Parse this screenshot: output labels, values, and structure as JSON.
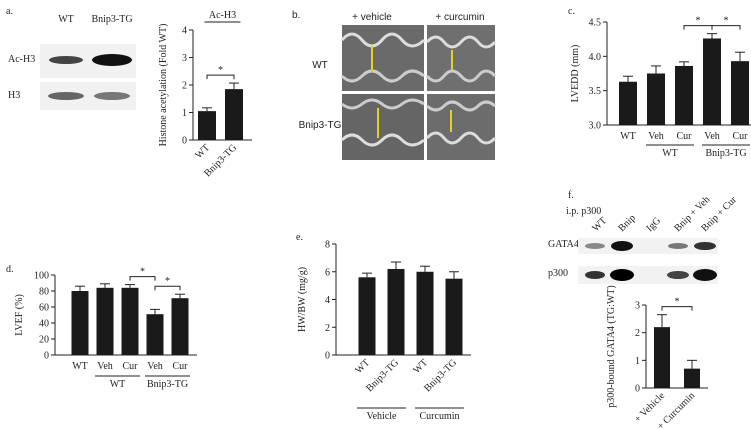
{
  "chart_data": [
    {
      "type": "bar",
      "panel": "a.",
      "title": "Ac-H3",
      "ylabel": "Histone acetylation (Fold WT)",
      "categories": [
        "WT",
        "Bnip3-TG"
      ],
      "values": [
        1.05,
        1.85
      ],
      "errors": [
        0.12,
        0.22
      ],
      "color": "#1a1a1a",
      "ylim": [
        0,
        4
      ],
      "yticks": [
        0,
        1,
        2,
        3,
        4
      ],
      "annotations": [
        {
          "text": "*",
          "between": [
            0,
            1
          ]
        }
      ]
    },
    {
      "type": "bar",
      "panel": "c.",
      "ylabel": "LVEDD (mm)",
      "categories": [
        "WT",
        "Veh",
        "Cur",
        "Veh",
        "Cur"
      ],
      "values": [
        3.63,
        3.75,
        3.86,
        4.26,
        3.93
      ],
      "errors": [
        0.08,
        0.11,
        0.06,
        0.07,
        0.13
      ],
      "color": "#1a1a1a",
      "ylim": [
        3,
        4.5
      ],
      "yticks": [
        {
          "value": 3,
          "label": "3.0"
        },
        3.5,
        {
          "value": 4,
          "label": "4.0"
        },
        4.5
      ],
      "groups": [
        {
          "label": "WT",
          "span": [
            1,
            2
          ]
        },
        {
          "label": "Bnip3-TG",
          "span": [
            3,
            4
          ]
        }
      ],
      "annotations": [
        {
          "text": "*",
          "between": [
            2,
            3
          ]
        },
        {
          "text": "*",
          "between": [
            3,
            4
          ]
        }
      ]
    },
    {
      "type": "bar",
      "panel": "d.",
      "ylabel": "LVEF (%)",
      "categories": [
        "WT",
        "Veh",
        "Cur",
        "Veh",
        "Cur"
      ],
      "values": [
        80,
        84,
        84,
        51,
        71
      ],
      "errors": [
        6,
        5,
        4,
        6,
        5
      ],
      "color": "#1a1a1a",
      "ylim": [
        0,
        100
      ],
      "yticks": [
        0,
        20,
        40,
        60,
        80,
        100
      ],
      "groups": [
        {
          "label": "WT",
          "span": [
            1,
            2
          ]
        },
        {
          "label": "Bnip3-TG",
          "span": [
            3,
            4
          ]
        }
      ],
      "annotations": [
        {
          "text": "*",
          "between": [
            2,
            3
          ]
        },
        {
          "text": "*",
          "between": [
            3,
            4
          ]
        }
      ]
    },
    {
      "type": "bar",
      "panel": "e.",
      "ylabel": "HW/BW (mg/g)",
      "categories": [
        "WT",
        "Bnip3-TG",
        "WT",
        "Bnip3-TG"
      ],
      "values": [
        5.6,
        6.2,
        6.0,
        5.5
      ],
      "errors": [
        0.3,
        0.5,
        0.4,
        0.5
      ],
      "color": "#1a1a1a",
      "ylim": [
        0,
        8
      ],
      "yticks": [
        0,
        2,
        4,
        6,
        8
      ],
      "groups": [
        {
          "label": "Vehicle",
          "span": [
            0,
            1
          ]
        },
        {
          "label": "Curcumin",
          "span": [
            2,
            3
          ]
        }
      ]
    },
    {
      "type": "bar",
      "panel": "f.",
      "ylabel": "p300-bound GATA4 (TG:WT)",
      "categories": [
        "+ Vehicle",
        "+ Curcumin"
      ],
      "values": [
        2.2,
        0.7
      ],
      "errors": [
        0.45,
        0.3
      ],
      "color": "#1a1a1a",
      "ylim": [
        0,
        3
      ],
      "yticks": [
        0,
        1,
        2,
        3
      ],
      "annotations": [
        {
          "text": "*",
          "between": [
            0,
            1
          ]
        }
      ]
    }
  ],
  "blot_a": {
    "lanes": [
      "WT",
      "Bnip3-TG"
    ],
    "rows": [
      "Ac-H3",
      "H3"
    ]
  },
  "echo_b": {
    "panel": "b.",
    "columns": [
      "+ vehicle",
      "+ curcumin"
    ],
    "rows": [
      "WT",
      "Bnip3-TG"
    ]
  },
  "blot_f": {
    "title": "i.p. p300",
    "lanes": [
      "WT",
      "Bnip",
      "IgG",
      "Bnip + Veh",
      "Bnip + Cur"
    ],
    "rows": [
      "GATA4",
      "p300"
    ]
  }
}
